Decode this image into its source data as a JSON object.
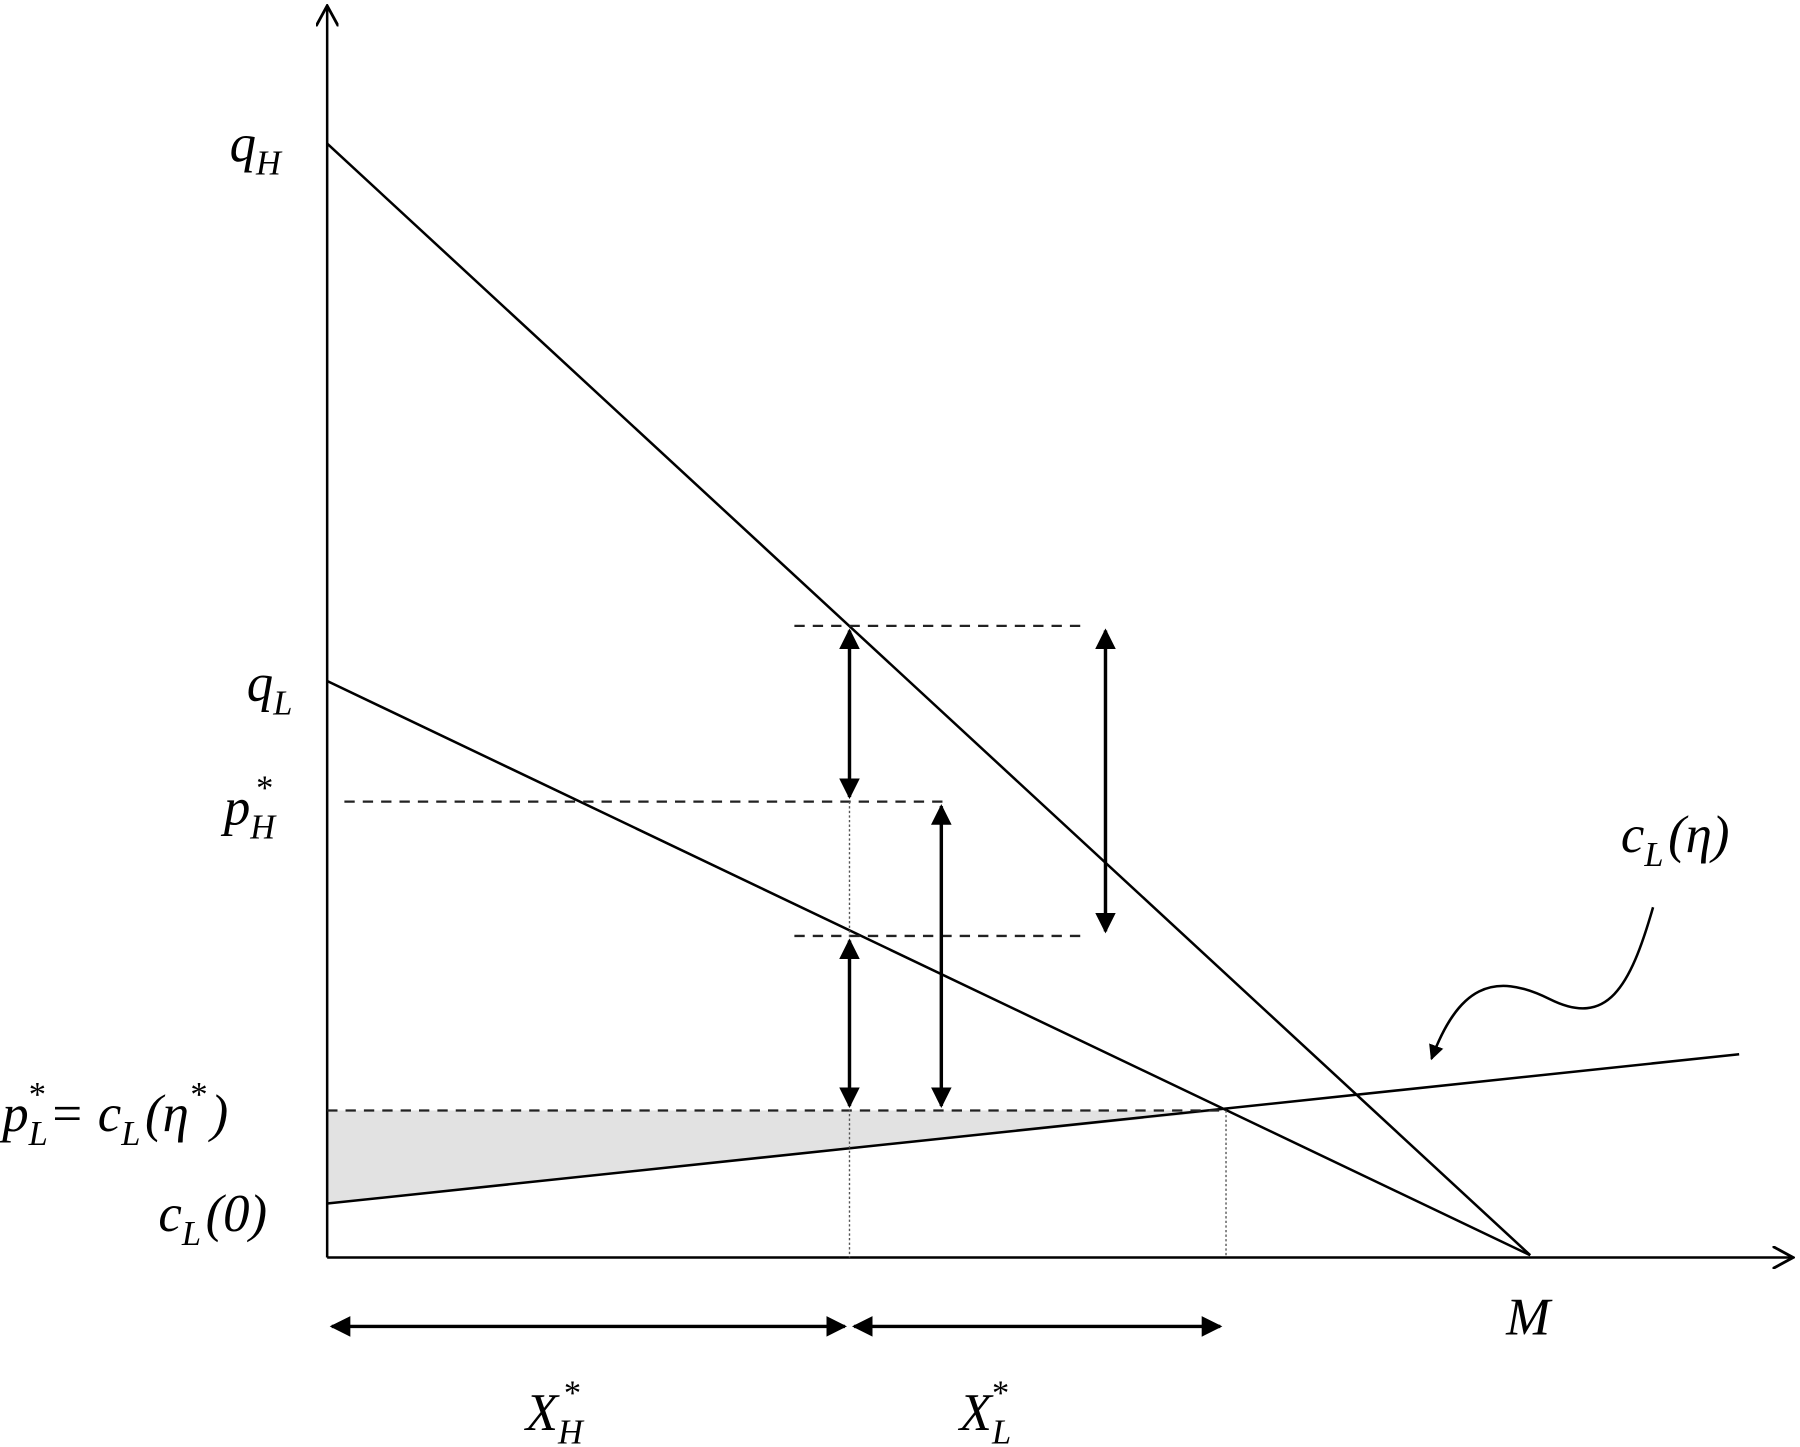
{
  "labels": [
    {
      "id": "qH",
      "parts": [
        {
          "text": "q",
          "style": "base"
        },
        {
          "text": "H",
          "style": "sub"
        }
      ]
    },
    {
      "id": "qL",
      "parts": [
        {
          "text": "q",
          "style": "base"
        },
        {
          "text": "L",
          "style": "sub"
        }
      ]
    },
    {
      "id": "pH",
      "parts": [
        {
          "text": "p",
          "style": "base"
        },
        {
          "text": "H",
          "style": "sub"
        },
        {
          "text": "*",
          "style": "sup"
        }
      ]
    },
    {
      "id": "pL",
      "parts": [
        {
          "text": "p",
          "style": "base"
        },
        {
          "text": "L",
          "style": "sub"
        },
        {
          "text": "*",
          "style": "sup"
        },
        {
          "text": "= c",
          "style": "base"
        },
        {
          "text": "L",
          "style": "sub"
        },
        {
          "text": "(η",
          "style": "base"
        },
        {
          "text": "*",
          "style": "sup"
        },
        {
          "text": ")",
          "style": "base"
        }
      ]
    },
    {
      "id": "c0",
      "parts": [
        {
          "text": "c",
          "style": "base"
        },
        {
          "text": "L",
          "style": "sub"
        },
        {
          "text": "(0)",
          "style": "base"
        }
      ]
    },
    {
      "id": "ceta",
      "parts": [
        {
          "text": "c",
          "style": "base"
        },
        {
          "text": "L",
          "style": "sub"
        },
        {
          "text": "(η)",
          "style": "base"
        }
      ]
    },
    {
      "id": "M",
      "parts": [
        {
          "text": "M",
          "style": "base"
        }
      ]
    },
    {
      "id": "XH",
      "parts": [
        {
          "text": "X",
          "style": "base"
        },
        {
          "text": "H",
          "style": "sub"
        },
        {
          "text": "*",
          "style": "sup"
        }
      ]
    },
    {
      "id": "XL",
      "parts": [
        {
          "text": "X",
          "style": "base"
        },
        {
          "text": "L",
          "style": "sub"
        },
        {
          "text": "*",
          "style": "sup"
        }
      ]
    }
  ]
}
